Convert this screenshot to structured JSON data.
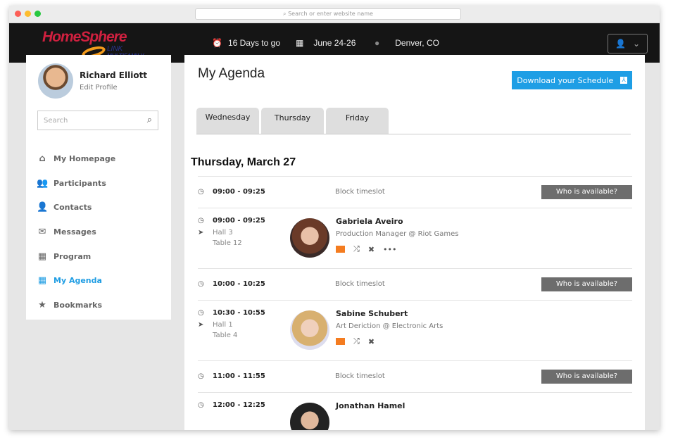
{
  "browser": {
    "url_placeholder": "Search or enter website name"
  },
  "header": {
    "logo": "HomeSphere LINK MULTIFAMILY",
    "countdown": "16 Days to go",
    "dates": "June 24-26",
    "location": "Denver, CO"
  },
  "sidebar": {
    "user_name": "Richard Elliott",
    "edit_profile": "Edit Profile",
    "search_placeholder": "Search",
    "items": [
      {
        "label": "My Homepage",
        "icon": "home-icon"
      },
      {
        "label": "Participants",
        "icon": "users-icon"
      },
      {
        "label": "Contacts",
        "icon": "user-icon"
      },
      {
        "label": "Messages",
        "icon": "envelope-icon"
      },
      {
        "label": "Program",
        "icon": "calendar-icon"
      },
      {
        "label": "My Agenda",
        "icon": "agenda-icon",
        "active": true
      },
      {
        "label": "Bookmarks",
        "icon": "star-icon"
      }
    ]
  },
  "main": {
    "title": "My Agenda",
    "download_label": "Download your Schedule",
    "tabs": [
      "Wednesday",
      "Thursday",
      "Friday"
    ],
    "day_heading": "Thursday, March 27",
    "who_label": "Who is available?",
    "block_label": "Block timeslot",
    "slots": [
      {
        "time": "09:00 - 09:25"
      },
      {
        "time": "09:00 - 09:25",
        "hall": "Hall  3",
        "table": "Table 12",
        "name": "Gabriela Aveiro",
        "job": "Production Manager @ Riot Games"
      },
      {
        "time": "10:00 - 10:25"
      },
      {
        "time": "10:30 - 10:55",
        "hall": "Hall 1",
        "table": "Table 4",
        "name": "Sabine Schubert",
        "job": "Art Deriction @ Electronic Arts"
      },
      {
        "time": "11:00 - 11:55"
      },
      {
        "time": "12:00 - 12:25",
        "name": "Jonathan Hamel"
      }
    ]
  },
  "colors": {
    "accent": "#1f9de3",
    "header_bg": "#151515",
    "mail_icon": "#f47c20",
    "who_button": "#6d6d6d"
  }
}
